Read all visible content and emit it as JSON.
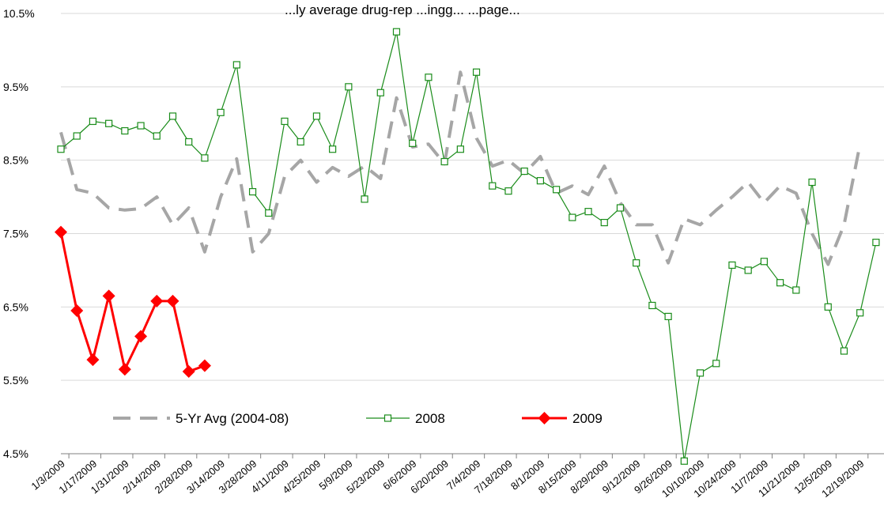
{
  "chart_data": {
    "type": "line",
    "title": "...ly average drug-rep ...ingg... ...page...",
    "y_unit": "%",
    "ylim": [
      4.5,
      10.5
    ],
    "yticks": [
      "10.5%",
      "9.5%",
      "8.5%",
      "7.5%",
      "6.5%",
      "5.5%",
      "4.5%"
    ],
    "ytick_values": [
      10.5,
      9.5,
      8.5,
      7.5,
      6.5,
      5.5,
      4.5
    ],
    "grid": true,
    "legend_position": "bottom-left",
    "x_labels": [
      "1/3/2009",
      "1/17/2009",
      "1/31/2009",
      "2/14/2009",
      "2/28/2009",
      "3/14/2009",
      "3/28/2009",
      "4/11/2009",
      "4/25/2009",
      "5/9/2009",
      "5/23/2009",
      "6/6/2009",
      "6/20/2009",
      "7/4/2009",
      "7/18/2009",
      "8/1/2009",
      "8/15/2009",
      "8/29/2009",
      "9/12/2009",
      "9/26/2009",
      "10/10/2009",
      "10/24/2009",
      "11/7/2009",
      "11/21/2009",
      "12/5/2009",
      "12/19/2009"
    ],
    "series": [
      {
        "name": "5-Yr Avg (2004-08)",
        "color": "#a6a6a6",
        "style": "dashed",
        "values": [
          8.88,
          8.1,
          8.05,
          7.85,
          7.82,
          7.84,
          8.0,
          7.62,
          7.85,
          7.25,
          8.0,
          8.52,
          7.25,
          7.5,
          8.28,
          8.5,
          8.2,
          8.4,
          8.28,
          8.42,
          8.25,
          9.35,
          8.68,
          8.72,
          8.45,
          9.7,
          8.8,
          8.42,
          8.5,
          8.32,
          8.55,
          8.05,
          8.15,
          8.03,
          8.42,
          7.92,
          7.62,
          7.62,
          7.1,
          7.7,
          7.62,
          7.82,
          8.0,
          8.2,
          7.92,
          8.15,
          8.05,
          7.5,
          7.08,
          7.62,
          8.72
        ]
      },
      {
        "name": "2008",
        "color": "#1a8c1a",
        "style": "solid",
        "marker": "square-open",
        "values": [
          8.65,
          8.83,
          9.03,
          9.0,
          8.9,
          8.97,
          8.83,
          9.1,
          8.75,
          8.53,
          9.15,
          9.8,
          8.07,
          7.78,
          9.03,
          8.75,
          9.1,
          8.65,
          9.5,
          7.97,
          9.42,
          10.25,
          8.73,
          9.63,
          8.48,
          8.65,
          9.7,
          8.15,
          8.08,
          8.35,
          8.22,
          8.1,
          7.72,
          7.8,
          7.65,
          7.85,
          7.1,
          6.52,
          6.37,
          4.4,
          5.6,
          5.73,
          7.07,
          7.0,
          7.12,
          6.83,
          6.73,
          8.2,
          6.5,
          5.9,
          6.42,
          7.38
        ]
      },
      {
        "name": "2009",
        "color": "#ff0000",
        "style": "solid",
        "marker": "diamond",
        "values": [
          7.52,
          6.45,
          5.78,
          6.65,
          5.65,
          6.1,
          6.58,
          6.58,
          5.62,
          5.7
        ]
      }
    ]
  }
}
